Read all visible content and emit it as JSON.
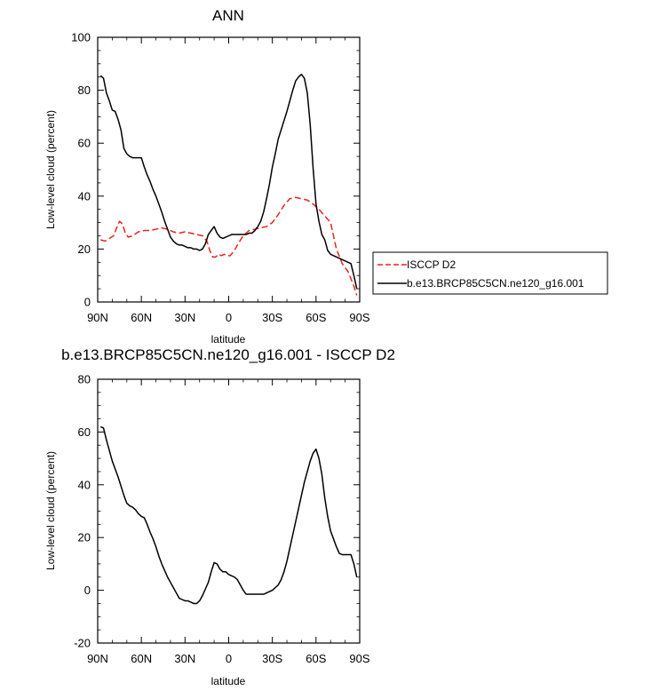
{
  "chart_data": [
    {
      "type": "line",
      "title": "ANN",
      "xlabel": "latitude",
      "ylabel": "Low-level cloud (percent)",
      "xlim": [
        -90,
        90
      ],
      "ylim": [
        0,
        100
      ],
      "x_ticks": [
        -90,
        -60,
        -30,
        0,
        30,
        60,
        90
      ],
      "x_tick_labels": [
        "90N",
        "60N",
        "30N",
        "0",
        "30S",
        "60S",
        "90S"
      ],
      "y_ticks": [
        0,
        20,
        40,
        60,
        80,
        100
      ],
      "y_tick_labels": [
        "0",
        "20",
        "40",
        "60",
        "80",
        "100"
      ],
      "legend_position": "right",
      "series": [
        {
          "name": "ISCCP D2",
          "color": "#e8231f",
          "style": "dashed",
          "x": [
            -88,
            -85,
            -82,
            -79,
            -77,
            -75,
            -73,
            -71,
            -69,
            -66,
            -62,
            -58,
            -54,
            -50,
            -46,
            -42,
            -38,
            -34,
            -30,
            -26,
            -22,
            -18,
            -15,
            -13,
            -11,
            -9,
            -7,
            -5,
            -3,
            -1,
            1,
            4,
            7,
            10,
            14,
            18,
            22,
            26,
            30,
            34,
            38,
            42,
            46,
            50,
            54,
            58,
            62,
            66,
            70,
            74,
            78,
            82,
            86,
            88
          ],
          "y": [
            23.5,
            23,
            24,
            25,
            28,
            30.5,
            29.5,
            26,
            24.5,
            25,
            26.5,
            27,
            27,
            27.5,
            28,
            27.5,
            26.5,
            26,
            26.5,
            26,
            25.5,
            25,
            23,
            19.5,
            17,
            17,
            18,
            17.5,
            18,
            17.5,
            17.5,
            19.5,
            22.5,
            25,
            27,
            27.5,
            28,
            28.5,
            30,
            33,
            36.5,
            39,
            39.5,
            39,
            38.5,
            37,
            35,
            32.5,
            30,
            20,
            14.5,
            11.5,
            6,
            2.5
          ]
        },
        {
          "name": "b.e13.BRCP85C5CN.ne120_g16.001",
          "color": "#000000",
          "style": "solid",
          "x": [
            -88,
            -86,
            -84,
            -82,
            -80,
            -78,
            -76,
            -74,
            -72,
            -70,
            -68,
            -66,
            -64,
            -62,
            -60,
            -58,
            -56,
            -54,
            -52,
            -50,
            -48,
            -46,
            -44,
            -42,
            -40,
            -38,
            -36,
            -34,
            -32,
            -30,
            -28,
            -26,
            -24,
            -22,
            -20,
            -18,
            -16,
            -14,
            -12,
            -10,
            -8,
            -6,
            -4,
            -2,
            0,
            2,
            4,
            6,
            8,
            10,
            12,
            14,
            16,
            18,
            20,
            22,
            24,
            26,
            28,
            30,
            32,
            34,
            36,
            38,
            40,
            42,
            44,
            46,
            48,
            50,
            52,
            54,
            56,
            58,
            60,
            62,
            64,
            66,
            68,
            70,
            72,
            74,
            76,
            78,
            80,
            82,
            84,
            86,
            88
          ],
          "y": [
            85.5,
            84.5,
            79,
            76,
            72.5,
            72,
            69,
            65,
            58,
            56,
            55,
            54.5,
            54.5,
            54.5,
            54.5,
            51,
            48,
            45.5,
            42.5,
            40,
            37,
            34,
            30.5,
            27.5,
            24.5,
            23,
            22,
            21.5,
            21.5,
            21,
            20.5,
            20.5,
            20,
            20,
            19.5,
            20,
            22,
            25.5,
            27,
            28.5,
            26,
            24.5,
            24,
            24.5,
            25,
            25.5,
            25.5,
            25.5,
            25.5,
            25.5,
            25.5,
            26,
            26,
            27,
            28.5,
            30.5,
            34,
            39,
            44.5,
            51,
            56,
            61.5,
            65,
            68.5,
            72,
            76,
            80,
            83.5,
            85,
            86,
            84.5,
            79,
            67,
            50.5,
            37,
            30.5,
            25.5,
            23.5,
            19.5,
            18,
            17.5,
            17,
            16.5,
            16,
            15.5,
            15,
            14.5,
            10,
            5
          ]
        }
      ]
    },
    {
      "type": "line",
      "title": "b.e13.BRCP85C5CN.ne120_g16.001 - ISCCP D2",
      "xlabel": "latitude",
      "ylabel": "Low-level cloud (percent)",
      "xlim": [
        -90,
        90
      ],
      "ylim": [
        -20,
        80
      ],
      "x_ticks": [
        -90,
        -60,
        -30,
        0,
        30,
        60,
        90
      ],
      "x_tick_labels": [
        "90N",
        "60N",
        "30N",
        "0",
        "30S",
        "60S",
        "90S"
      ],
      "y_ticks": [
        -20,
        0,
        20,
        40,
        60,
        80
      ],
      "y_tick_labels": [
        "-20",
        "0",
        "20",
        "40",
        "60",
        "80"
      ],
      "series": [
        {
          "color": "#000000",
          "style": "solid",
          "x": [
            -88,
            -86,
            -84,
            -82,
            -80,
            -78,
            -76,
            -74,
            -72,
            -70,
            -68,
            -66,
            -64,
            -62,
            -60,
            -58,
            -56,
            -54,
            -52,
            -50,
            -48,
            -46,
            -44,
            -42,
            -40,
            -38,
            -36,
            -34,
            -32,
            -30,
            -28,
            -26,
            -24,
            -22,
            -20,
            -18,
            -16,
            -14,
            -12,
            -10,
            -8,
            -6,
            -4,
            -2,
            0,
            2,
            4,
            6,
            8,
            10,
            12,
            14,
            16,
            18,
            20,
            22,
            24,
            26,
            28,
            30,
            32,
            34,
            36,
            38,
            40,
            42,
            44,
            46,
            48,
            50,
            52,
            54,
            56,
            58,
            60,
            62,
            64,
            66,
            68,
            70,
            72,
            74,
            76,
            78,
            80,
            82,
            84,
            86,
            88
          ],
          "y": [
            62,
            61.5,
            57,
            53,
            49,
            46,
            43,
            39.5,
            36,
            33,
            32,
            31.5,
            30.5,
            29,
            28,
            27.5,
            25,
            22,
            19.5,
            16.5,
            13,
            10,
            7.5,
            5,
            3,
            1,
            -1,
            -3,
            -3.5,
            -4,
            -4,
            -4.5,
            -5,
            -5,
            -4,
            -2,
            0.5,
            3,
            7,
            10.5,
            10,
            8,
            7,
            7,
            6,
            5.5,
            5,
            4,
            2,
            0,
            -1.5,
            -1.5,
            -1.5,
            -1.5,
            -1.5,
            -1.5,
            -1.5,
            -1,
            -0.5,
            0,
            1,
            2,
            4,
            7,
            11,
            16,
            21,
            26,
            31,
            36,
            41,
            45,
            49,
            52,
            53.5,
            50,
            44,
            35,
            28,
            22.5,
            19.5,
            16.5,
            14,
            13.5,
            13.5,
            13.5,
            13.5,
            10,
            5
          ]
        }
      ]
    }
  ]
}
